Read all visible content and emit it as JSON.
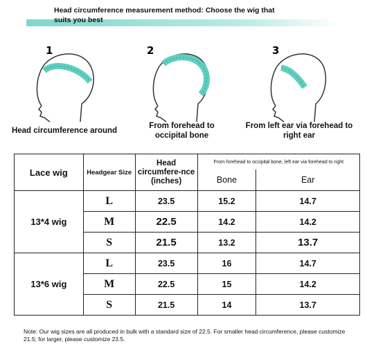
{
  "header": {
    "title": "Head circumference measurement method: Choose the wig that suits you best"
  },
  "steps": [
    {
      "number": "1",
      "caption": "Head circumference around"
    },
    {
      "number": "2",
      "caption": "From forehead to occipital bone"
    },
    {
      "number": "3",
      "caption": "From left ear via forehead to right ear"
    }
  ],
  "table": {
    "headers": {
      "lace_wig": "Lace wig",
      "headgear_size": "Headgear Size",
      "head_circumference": "Head circumfere-nce (inches)",
      "span": "From forehead to occipital bone, left ear via forehead to right",
      "bone": "Bone",
      "ear": "Ear"
    },
    "groups": [
      {
        "name": "13*4 wig",
        "rows": [
          [
            "L",
            "23.5",
            "15.2",
            "14.7"
          ],
          [
            "M",
            "22.5",
            "14.2",
            "14.2"
          ],
          [
            "S",
            "21.5",
            "13.2",
            "13.7"
          ]
        ]
      },
      {
        "name": "13*6 wig",
        "rows": [
          [
            "L",
            "23.5",
            "16",
            "14.7"
          ],
          [
            "M",
            "22.5",
            "15",
            "14.2"
          ],
          [
            "S",
            "21.5",
            "14",
            "13.7"
          ]
        ]
      }
    ]
  },
  "note": "Note: Our wig sizes are all produced in bulk with a standard size of 22.5. For smaller head circumference, please customize 21.5; for larger, please customize 23.5."
}
